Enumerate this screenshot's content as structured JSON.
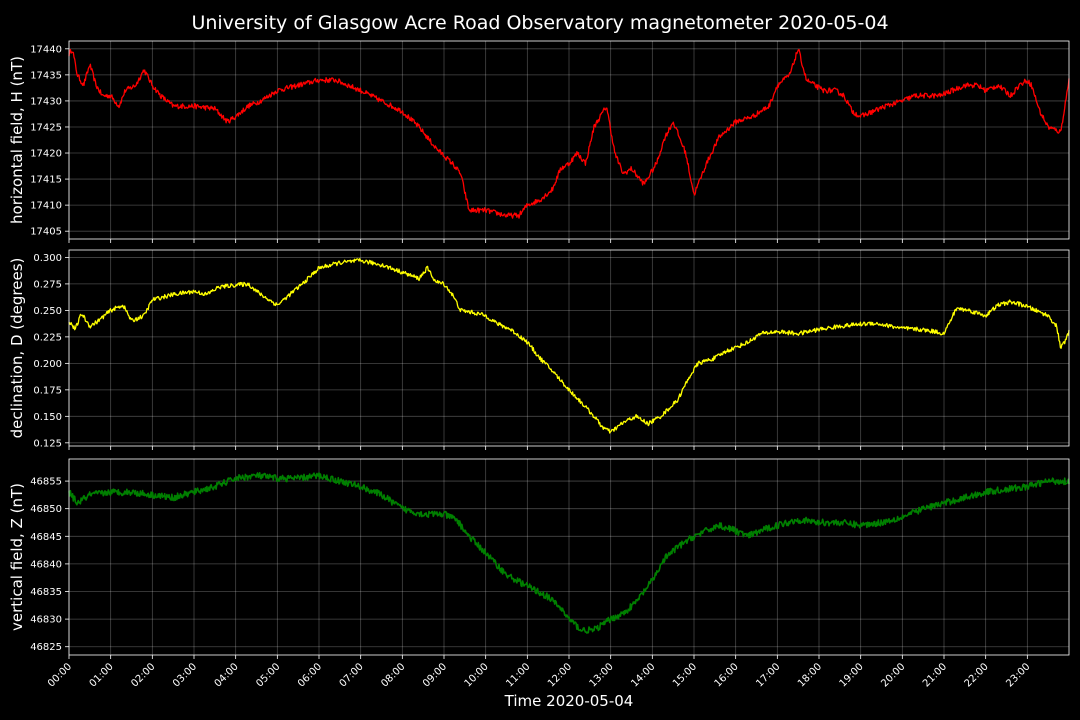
{
  "title": "University of Glasgow Acre Road Observatory magnetometer 2020-05-04",
  "chart_data": [
    {
      "type": "line",
      "ylabel": "horizontal field, H (nT)",
      "color": "#ff0000",
      "xlim": [
        0,
        24
      ],
      "ylim": [
        17403.5,
        17441.5
      ],
      "yticks": [
        "17440",
        "17435",
        "17430",
        "17425",
        "17420",
        "17415",
        "17410",
        "17405"
      ],
      "ytick_values": [
        17440,
        17435,
        17430,
        17425,
        17420,
        17415,
        17410,
        17405
      ],
      "noise": 0.5,
      "series": [
        {
          "x": [
            0,
            0.08,
            0.2,
            0.35,
            0.5,
            0.65,
            0.8,
            1.0,
            1.2,
            1.35,
            1.6,
            1.8,
            2.0,
            2.2,
            2.5,
            3.0,
            3.5,
            3.8,
            4.0,
            4.3,
            4.6,
            5.0,
            5.5,
            6.0,
            6.4,
            6.7,
            7.0,
            7.5,
            8.0,
            8.4,
            8.8,
            9.2,
            9.4,
            9.6,
            10.0,
            10.5,
            10.8,
            11.0,
            11.3,
            11.6,
            11.8,
            12.0,
            12.2,
            12.4,
            12.6,
            12.9,
            13.1,
            13.3,
            13.5,
            13.8,
            14.1,
            14.3,
            14.5,
            14.8,
            15.0,
            15.3,
            15.6,
            16.0,
            16.4,
            16.8,
            17.0,
            17.3,
            17.5,
            17.7,
            17.9,
            18.1,
            18.4,
            18.6,
            18.8,
            19.0,
            19.3,
            19.6,
            20.0,
            20.3,
            20.6,
            20.9,
            21.2,
            21.5,
            21.8,
            22.0,
            22.3,
            22.6,
            22.8,
            23.0,
            23.1,
            23.3,
            23.5,
            23.8,
            24.0
          ],
          "y": [
            17439,
            17440,
            17435,
            17433,
            17437,
            17433,
            17431,
            17431,
            17429,
            17432,
            17433,
            17436,
            17433,
            17431,
            17429,
            17429,
            17428.5,
            17426,
            17427,
            17429,
            17430,
            17432,
            17433,
            17434,
            17434,
            17433,
            17432,
            17430,
            17428,
            17425,
            17421,
            17418,
            17416,
            17409,
            17409,
            17408,
            17408,
            17410,
            17411,
            17413,
            17417,
            17418,
            17420,
            17418,
            17425,
            17429,
            17420,
            17416,
            17417,
            17414,
            17418,
            17423,
            17426,
            17420,
            17412,
            17418,
            17423,
            17426,
            17427,
            17429,
            17433,
            17435,
            17440,
            17434,
            17433,
            17432,
            17432,
            17431,
            17428,
            17427,
            17428,
            17429,
            17430,
            17431,
            17431,
            17431,
            17432,
            17433,
            17433,
            17432,
            17433,
            17431,
            17433,
            17434,
            17433,
            17428,
            17425,
            17424,
            17434
          ]
        }
      ]
    },
    {
      "type": "line",
      "ylabel": "declination, D (degrees)",
      "color": "#ffff00",
      "xlim": [
        0,
        24
      ],
      "ylim": [
        0.122,
        0.307
      ],
      "yticks": [
        "0.300",
        "0.275",
        "0.250",
        "0.225",
        "0.200",
        "0.175",
        "0.150",
        "0.125"
      ],
      "ytick_values": [
        0.3,
        0.275,
        0.25,
        0.225,
        0.2,
        0.175,
        0.15,
        0.125
      ],
      "noise": 0.002,
      "series": [
        {
          "x": [
            0,
            0.15,
            0.3,
            0.5,
            0.7,
            1.0,
            1.3,
            1.5,
            1.8,
            2.0,
            2.5,
            3.0,
            3.3,
            3.6,
            4.0,
            4.3,
            4.6,
            4.8,
            5.0,
            5.3,
            5.6,
            6.0,
            6.5,
            7.0,
            7.5,
            8.0,
            8.4,
            8.6,
            8.8,
            9.0,
            9.2,
            9.4,
            9.7,
            10.0,
            10.3,
            10.6,
            11.0,
            11.3,
            11.6,
            12.0,
            12.3,
            12.6,
            12.8,
            13.0,
            13.3,
            13.6,
            13.9,
            14.2,
            14.6,
            14.9,
            15.1,
            15.5,
            15.8,
            16.0,
            16.3,
            16.6,
            17.0,
            17.5,
            18.0,
            18.5,
            19.0,
            19.3,
            19.6,
            20.0,
            20.4,
            20.8,
            21.0,
            21.3,
            21.6,
            22.0,
            22.3,
            22.6,
            22.9,
            23.2,
            23.5,
            23.7,
            23.8,
            23.9,
            24.0
          ],
          "y": [
            0.24,
            0.232,
            0.247,
            0.235,
            0.24,
            0.25,
            0.255,
            0.24,
            0.245,
            0.26,
            0.265,
            0.268,
            0.265,
            0.272,
            0.274,
            0.275,
            0.265,
            0.26,
            0.255,
            0.265,
            0.275,
            0.29,
            0.295,
            0.297,
            0.293,
            0.286,
            0.28,
            0.29,
            0.277,
            0.275,
            0.265,
            0.25,
            0.248,
            0.245,
            0.237,
            0.232,
            0.22,
            0.205,
            0.193,
            0.175,
            0.163,
            0.15,
            0.14,
            0.135,
            0.144,
            0.15,
            0.143,
            0.15,
            0.165,
            0.188,
            0.2,
            0.205,
            0.212,
            0.215,
            0.22,
            0.228,
            0.23,
            0.228,
            0.232,
            0.235,
            0.237,
            0.238,
            0.236,
            0.233,
            0.232,
            0.23,
            0.228,
            0.252,
            0.25,
            0.245,
            0.255,
            0.258,
            0.255,
            0.25,
            0.245,
            0.235,
            0.215,
            0.22,
            0.23
          ]
        }
      ]
    },
    {
      "type": "line",
      "ylabel": "vertical field, Z (nT)",
      "color": "#007f00",
      "xlim": [
        0,
        24
      ],
      "ylim": [
        46823.5,
        46859
      ],
      "yticks": [
        "46855",
        "46850",
        "46845",
        "46840",
        "46835",
        "46830",
        "46825"
      ],
      "ytick_values": [
        46855,
        46850,
        46845,
        46840,
        46835,
        46830,
        46825
      ],
      "noise": 0.6,
      "series": [
        {
          "x": [
            0,
            0.2,
            0.5,
            1.0,
            1.5,
            2.0,
            2.5,
            3.0,
            3.5,
            4.0,
            4.5,
            5.0,
            5.5,
            6.0,
            6.5,
            7.0,
            7.5,
            8.0,
            8.5,
            9.0,
            9.3,
            9.6,
            10.0,
            10.5,
            11.0,
            11.5,
            11.8,
            12.0,
            12.3,
            12.6,
            13.0,
            13.3,
            13.6,
            14.0,
            14.3,
            14.6,
            15.0,
            15.3,
            15.6,
            16.0,
            16.3,
            16.6,
            17.0,
            17.5,
            18.0,
            18.5,
            19.0,
            19.5,
            20.0,
            20.5,
            21.0,
            21.5,
            22.0,
            22.5,
            23.0,
            23.5,
            24.0
          ],
          "y": [
            46853,
            46851,
            46852.5,
            46853,
            46853,
            46852.5,
            46852,
            46853,
            46854,
            46855.5,
            46856,
            46855.5,
            46855.5,
            46856,
            46855,
            46854,
            46852.5,
            46850,
            46849,
            46849,
            46848,
            46845,
            46842,
            46838,
            46836,
            46834,
            46832,
            46830,
            46828,
            46828,
            46830,
            46831,
            46833,
            46837,
            46841,
            46843,
            46845,
            46846,
            46847,
            46846,
            46845,
            46846,
            46847,
            46848,
            46847.5,
            46847.5,
            46847,
            46847.5,
            46848.5,
            46850,
            46851,
            46852,
            46853,
            46853.5,
            46854,
            46855,
            46855
          ]
        }
      ]
    }
  ],
  "xaxis": {
    "ticks": [
      "00:00",
      "01:00",
      "02:00",
      "03:00",
      "04:00",
      "05:00",
      "06:00",
      "07:00",
      "08:00",
      "09:00",
      "10:00",
      "11:00",
      "12:00",
      "13:00",
      "14:00",
      "15:00",
      "16:00",
      "17:00",
      "18:00",
      "19:00",
      "20:00",
      "21:00",
      "22:00",
      "23:00"
    ],
    "label": "Time 2020-05-04"
  }
}
